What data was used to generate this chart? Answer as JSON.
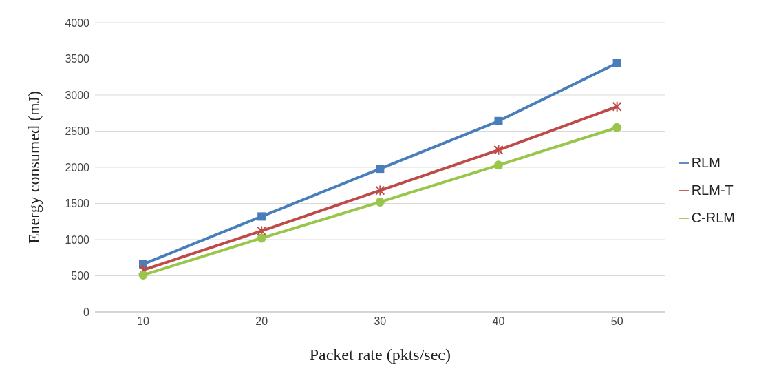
{
  "chart_data": {
    "type": "line",
    "xlabel": "Packet rate (pkts/sec)",
    "ylabel": "Energy consumed (mJ)",
    "categories": [
      "10",
      "20",
      "30",
      "40",
      "50"
    ],
    "series": [
      {
        "name": "RLM",
        "color": "#4a7ebb",
        "marker": "square",
        "values": [
          660,
          1320,
          1980,
          2640,
          3440
        ]
      },
      {
        "name": "RLM-T",
        "color": "#be4b48",
        "marker": "cross",
        "values": [
          580,
          1120,
          1680,
          2240,
          2840
        ]
      },
      {
        "name": "C-RLM",
        "color": "#98c54a",
        "marker": "circle",
        "values": [
          510,
          1020,
          1520,
          2030,
          2550
        ]
      }
    ],
    "ylim": [
      0,
      4000
    ],
    "yticks": [
      0,
      500,
      1000,
      1500,
      2000,
      2500,
      3000,
      3500,
      4000
    ],
    "grid": "y",
    "legend": "right",
    "line_style": "solid"
  }
}
